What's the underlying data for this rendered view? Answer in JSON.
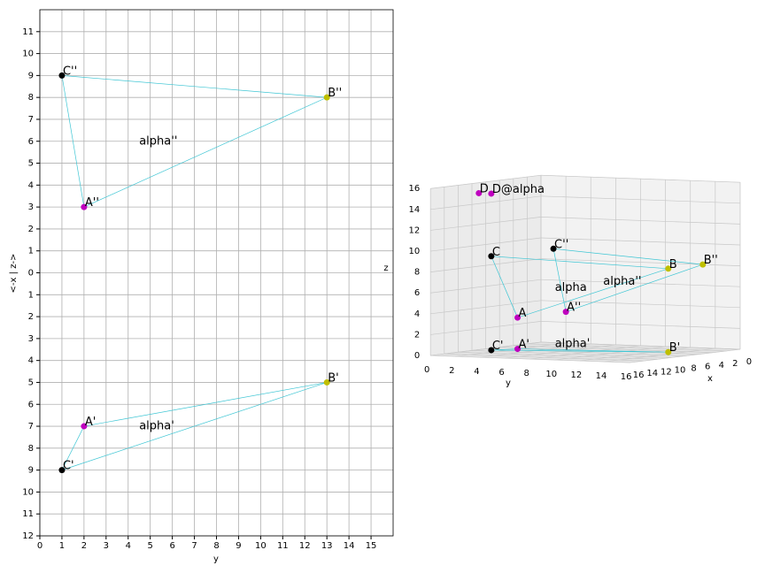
{
  "chart_data": [
    {
      "type": "scatter",
      "xlabel": "y",
      "ylabel": "<-x | z->",
      "xlim": [
        0,
        16
      ],
      "ylim": [
        -12,
        12
      ],
      "grid": true,
      "xticks": [
        0,
        1,
        2,
        3,
        4,
        5,
        6,
        7,
        8,
        9,
        10,
        11,
        12,
        13,
        14,
        15
      ],
      "yticks": [
        {
          "value": -12,
          "label": "12"
        },
        {
          "value": -11,
          "label": "11"
        },
        {
          "value": -10,
          "label": "10"
        },
        {
          "value": -9,
          "label": "9"
        },
        {
          "value": -8,
          "label": "8"
        },
        {
          "value": -7,
          "label": "7"
        },
        {
          "value": -6,
          "label": "6"
        },
        {
          "value": -5,
          "label": "5"
        },
        {
          "value": -4,
          "label": "4"
        },
        {
          "value": -3,
          "label": "3"
        },
        {
          "value": -2,
          "label": "2"
        },
        {
          "value": -1,
          "label": "1"
        },
        0,
        1,
        2,
        3,
        4,
        5,
        6,
        7,
        8,
        9,
        10,
        11
      ],
      "line_color": "#3fc6d4",
      "series": [
        {
          "labels": [
            "C''",
            "B''",
            "A''"
          ],
          "colors": [
            "#000000",
            "#bfbf00",
            "#bf00bf"
          ],
          "x": [
            1,
            13,
            2
          ],
          "y": [
            9,
            8,
            3
          ],
          "closed": true
        },
        {
          "labels": [
            "C'",
            "B'",
            "A'"
          ],
          "colors": [
            "#000000",
            "#bfbf00",
            "#bf00bf"
          ],
          "x": [
            1,
            13,
            2
          ],
          "y": [
            -9,
            -5,
            -7
          ],
          "closed": true
        }
      ],
      "annotations": [
        {
          "text": "alpha''",
          "x": 4.5,
          "y": 6
        },
        {
          "text": "alpha'",
          "x": 4.5,
          "y": -7
        }
      ]
    },
    {
      "type": "scatter3d",
      "xlabel": "x",
      "ylabel": "y",
      "zlabel": "z",
      "xlim": [
        0,
        16
      ],
      "ylim": [
        0,
        16
      ],
      "zlim": [
        0,
        16
      ],
      "xticks": [
        0,
        2,
        4,
        6,
        8,
        10,
        12,
        14,
        16
      ],
      "yticks": [
        0,
        2,
        4,
        6,
        8,
        10,
        12,
        14,
        16
      ],
      "zticks": [
        0,
        2,
        4,
        6,
        8,
        10,
        12,
        14,
        16
      ],
      "line_color": "#3fc6d4",
      "series": [
        {
          "labels": [
            "A",
            "B",
            "C"
          ],
          "colors": [
            "#bf00bf",
            "#bfbf00",
            "#000000"
          ],
          "x": [
            7,
            5,
            9
          ],
          "y": [
            2,
            13,
            1
          ],
          "z": [
            3,
            8,
            9
          ],
          "closed": true
        },
        {
          "labels": [
            "A''",
            "B''",
            "C''"
          ],
          "colors": [
            "#bf00bf",
            "#bfbf00",
            "#000000"
          ],
          "x": [
            0,
            0,
            0
          ],
          "y": [
            2,
            13,
            1
          ],
          "z": [
            3,
            8,
            9
          ],
          "closed": true
        },
        {
          "labels": [
            "A'",
            "B'",
            "C'"
          ],
          "colors": [
            "#bf00bf",
            "#bfbf00",
            "#000000"
          ],
          "x": [
            7,
            5,
            9
          ],
          "y": [
            2,
            13,
            1
          ],
          "z": [
            0,
            0,
            0
          ],
          "closed": true
        },
        {
          "labels": [
            "D",
            "D@alpha"
          ],
          "colors": [
            "#bf00bf",
            "#bf00bf"
          ],
          "x": [
            9,
            9
          ],
          "y": [
            0,
            1
          ],
          "z": [
            15,
            15
          ],
          "closed": false
        }
      ],
      "annotations": [
        {
          "text": "alpha",
          "x": 7,
          "y": 5,
          "z": 6
        },
        {
          "text": "alpha''",
          "x": 0,
          "y": 5,
          "z": 6
        },
        {
          "text": "alpha'",
          "x": 7,
          "y": 5,
          "z": 0.6
        }
      ]
    }
  ]
}
